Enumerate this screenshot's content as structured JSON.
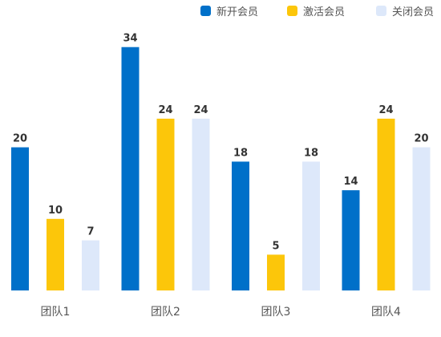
{
  "chart_data": {
    "type": "bar",
    "title": "",
    "xlabel": "",
    "ylabel": "",
    "categories": [
      "团队1",
      "团队2",
      "团队3",
      "团队4"
    ],
    "series": [
      {
        "name": "新开会员",
        "color": "#0070c9",
        "values": [
          20,
          34,
          18,
          14
        ]
      },
      {
        "name": "激活会员",
        "color": "#fcc60a",
        "values": [
          10,
          24,
          5,
          24
        ]
      },
      {
        "name": "关闭会员",
        "color": "#dde8fa",
        "values": [
          7,
          24,
          18,
          20
        ]
      }
    ],
    "ylim": [
      0,
      38
    ],
    "grid": false,
    "legend_position": "top-right",
    "data_labels": true,
    "colors": {
      "label_text": "#333333",
      "category_text": "#555555",
      "baseline": "#e6e6e6"
    }
  }
}
